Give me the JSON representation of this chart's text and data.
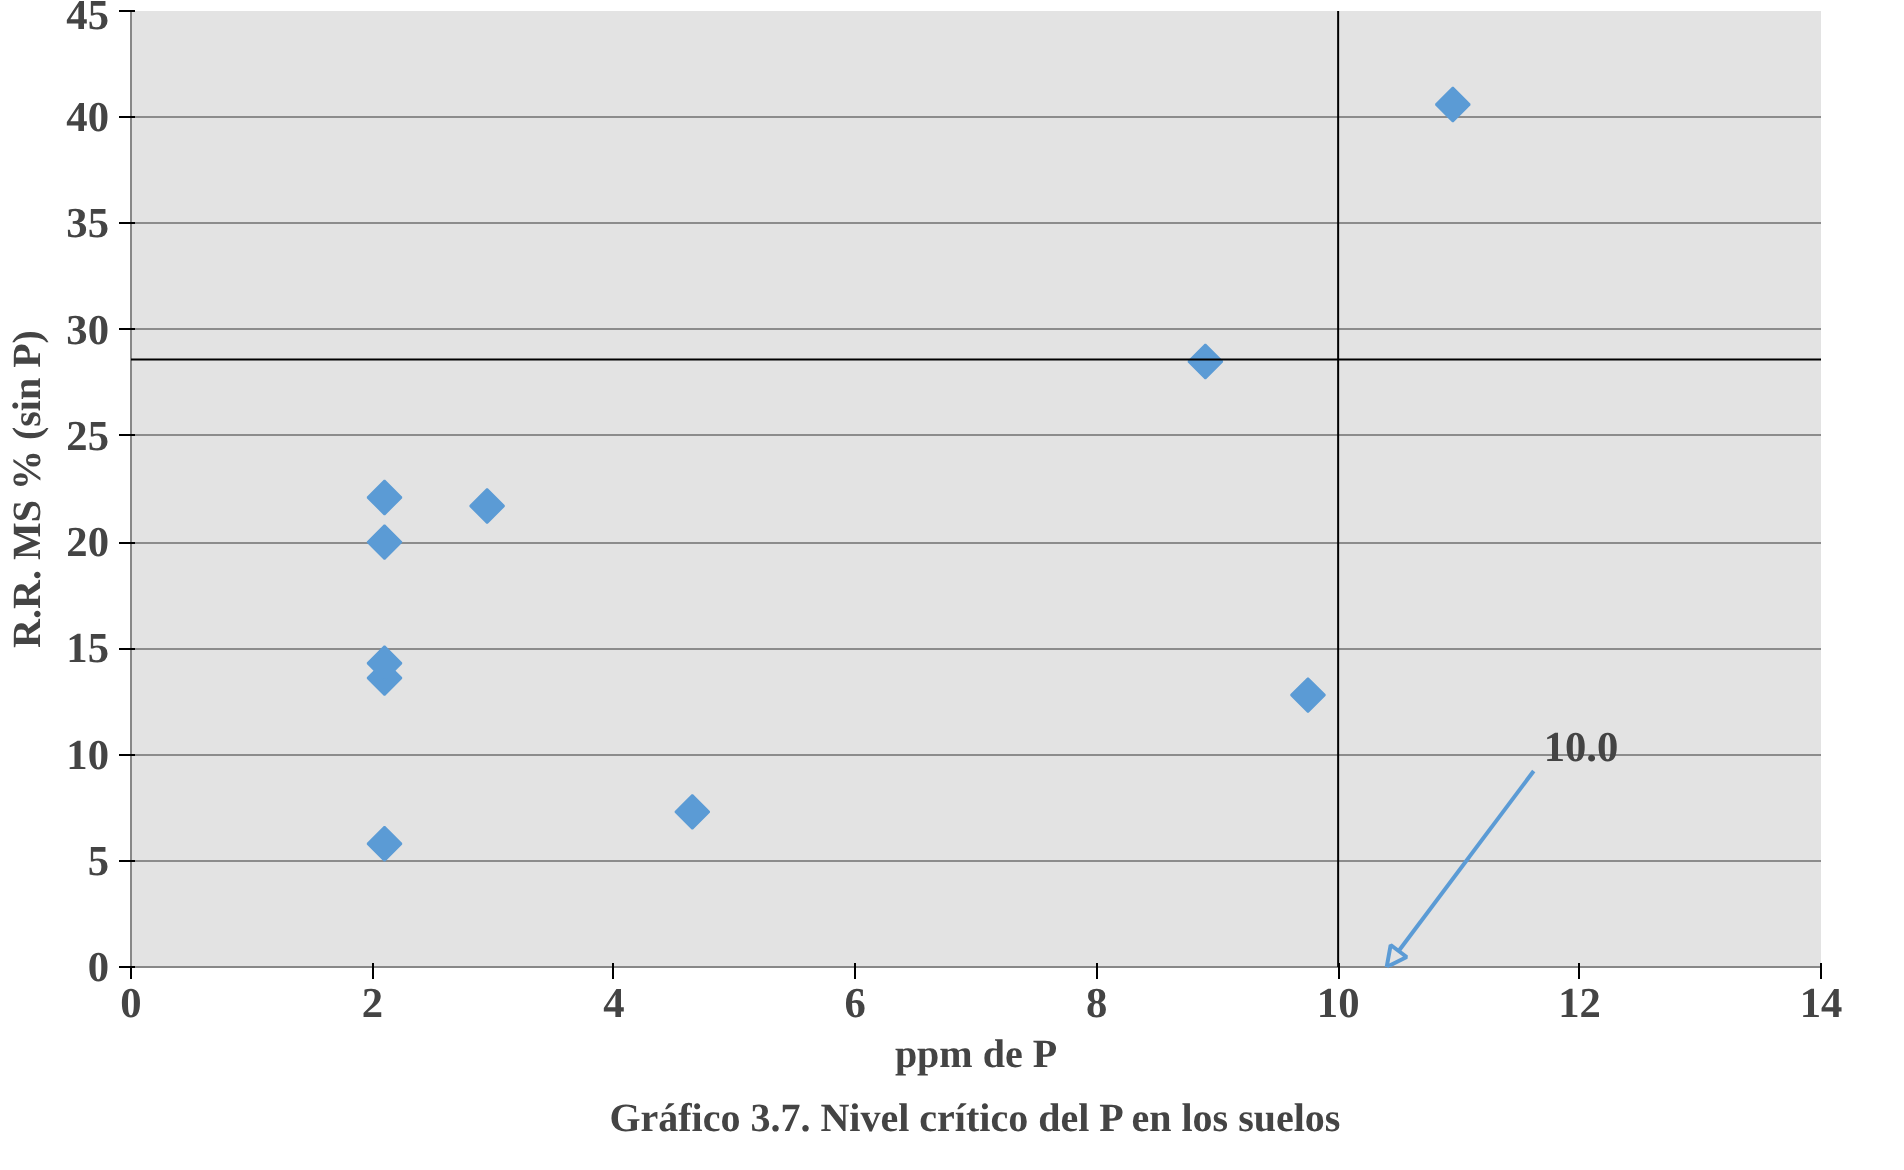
{
  "chart_data": {
    "type": "scatter",
    "title": "Gráfico 3.7. Nivel crítico del P en los suelos",
    "xlabel": "ppm de P",
    "ylabel": "R.R. MS % (sin P)",
    "x": [
      2.1,
      2.1,
      2.1,
      2.1,
      2.1,
      2.95,
      4.65,
      8.9,
      9.75,
      10.95
    ],
    "series": [
      {
        "color": "#5b9bd5",
        "values": [
          5.8,
          13.6,
          14.3,
          20.0,
          22.1,
          21.7,
          7.3,
          28.5,
          12.8,
          40.6
        ]
      }
    ],
    "xlim": [
      0,
      14
    ],
    "xticks": [
      0,
      2,
      4,
      6,
      8,
      10,
      12,
      14
    ],
    "ylim": [
      0,
      45
    ],
    "yticks": [
      0,
      5,
      10,
      15,
      20,
      25,
      30,
      35,
      40,
      45
    ],
    "grid": "y",
    "marker": "diamond",
    "ref_lines": [
      {
        "axis": "x",
        "value": 10.0,
        "color": "#000000"
      },
      {
        "axis": "y",
        "value": 28.6,
        "color": "#000000"
      }
    ],
    "annotations": [
      "10.0"
    ]
  }
}
